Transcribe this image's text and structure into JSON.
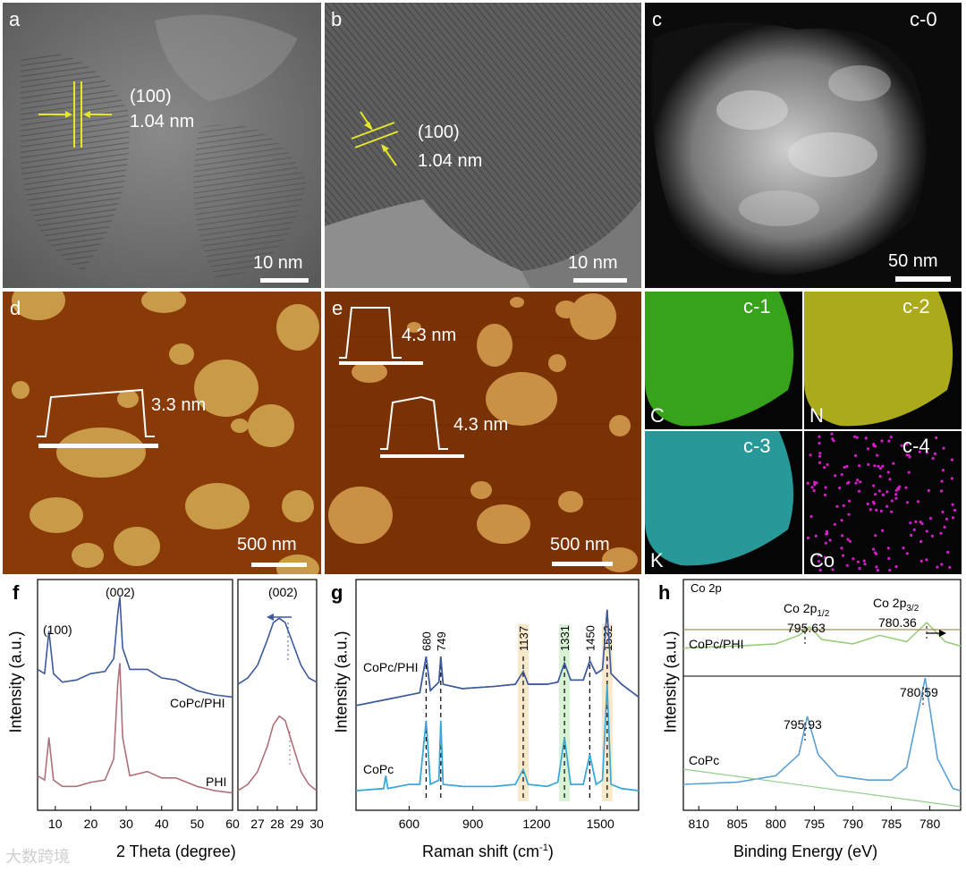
{
  "panels": {
    "a": {
      "letter": "a",
      "plane": "(100)",
      "spacing": "1.04 nm",
      "scale": "10 nm"
    },
    "b": {
      "letter": "b",
      "plane": "(100)",
      "spacing": "1.04 nm",
      "scale": "10 nm"
    },
    "c0": {
      "letter": "c",
      "tag": "c-0",
      "scale": "50 nm"
    },
    "d": {
      "letter": "d",
      "height": "3.3 nm",
      "scale": "500 nm"
    },
    "e": {
      "letter": "e",
      "height1": "4.3 nm",
      "height2": "4.3 nm",
      "scale": "500 nm"
    },
    "c1": {
      "tag": "c-1",
      "element": "C",
      "color": "#3fbf1f"
    },
    "c2": {
      "tag": "c-2",
      "element": "N",
      "color": "#c8c81e"
    },
    "c3": {
      "tag": "c-3",
      "element": "K",
      "color": "#2fb4b4"
    },
    "c4": {
      "tag": "c-4",
      "element": "Co",
      "color": "#d21ec8"
    }
  },
  "panel_f": {
    "letter": "f",
    "peak_100": "(100)",
    "peak_002": "(002)",
    "inset_peak": "(002)"
  },
  "panel_g": {
    "letter": "g"
  },
  "panel_h": {
    "letter": "h",
    "region": "Co 2p",
    "top_peak_left": "795.63",
    "top_peak_right": "780.36",
    "bottom_peak_left": "795.93",
    "bottom_peak_right": "780.59"
  },
  "chart_data": [
    {
      "type": "line",
      "xlabel": "2 Theta (degree)",
      "ylabel": "Intensity (a.u.)",
      "xlim": [
        5,
        60
      ],
      "xticks": [
        "10",
        "20",
        "30",
        "40",
        "50",
        "60"
      ],
      "series": [
        {
          "name": "CoPc/PHI",
          "color": "#3d5a9e",
          "x": [
            5,
            7,
            8.2,
            9.5,
            12,
            16,
            20,
            24,
            26.5,
            27.6,
            28.2,
            29,
            31,
            36,
            40,
            44,
            50,
            55,
            60
          ],
          "y": [
            0.62,
            0.6,
            0.8,
            0.6,
            0.56,
            0.57,
            0.6,
            0.61,
            0.67,
            0.88,
            0.96,
            0.72,
            0.62,
            0.62,
            0.58,
            0.57,
            0.52,
            0.5,
            0.49
          ]
        },
        {
          "name": "PHI",
          "color": "#b0707a",
          "x": [
            5,
            7,
            8.2,
            9.5,
            12,
            16,
            20,
            24,
            26.5,
            27.6,
            28.2,
            29,
            31,
            36,
            40,
            44,
            50,
            55,
            60
          ],
          "y": [
            0.12,
            0.1,
            0.3,
            0.1,
            0.07,
            0.07,
            0.09,
            0.1,
            0.2,
            0.55,
            0.65,
            0.3,
            0.12,
            0.14,
            0.11,
            0.11,
            0.07,
            0.05,
            0.04
          ]
        }
      ],
      "annotations": [
        "(100)",
        "(002)"
      ]
    },
    {
      "type": "line",
      "xlim": [
        26,
        30
      ],
      "xticks": [
        "27",
        "28",
        "29",
        "30"
      ],
      "series": [
        {
          "name": "CoPc/PHI",
          "color": "#3d5a9e",
          "x": [
            26,
            26.5,
            27,
            27.5,
            27.8,
            28.1,
            28.4,
            28.8,
            29.2,
            29.6,
            30
          ],
          "y": [
            0.55,
            0.58,
            0.64,
            0.76,
            0.84,
            0.86,
            0.84,
            0.74,
            0.64,
            0.58,
            0.56
          ]
        },
        {
          "name": "PHI",
          "color": "#b0707a",
          "x": [
            26,
            26.5,
            27,
            27.5,
            27.8,
            28.1,
            28.4,
            28.8,
            29.2,
            29.6,
            30
          ],
          "y": [
            0.05,
            0.08,
            0.14,
            0.26,
            0.36,
            0.4,
            0.38,
            0.26,
            0.14,
            0.08,
            0.05
          ]
        }
      ],
      "annotations": [
        "(002)"
      ]
    },
    {
      "type": "line",
      "xlabel": "Raman shift (cm-1)",
      "ylabel": "Intensity (a.u.)",
      "xlim": [
        350,
        1680
      ],
      "xticks": [
        "600",
        "900",
        "1200",
        "1500"
      ],
      "series": [
        {
          "name": "CoPc/PHI",
          "color": "#3d5a9e",
          "x": [
            350,
            500,
            600,
            650,
            680,
            700,
            740,
            749,
            760,
            850,
            1000,
            1100,
            1137,
            1160,
            1250,
            1300,
            1331,
            1360,
            1420,
            1450,
            1480,
            1510,
            1532,
            1550,
            1600,
            1680
          ],
          "y": [
            0.45,
            0.48,
            0.5,
            0.51,
            0.68,
            0.52,
            0.56,
            0.68,
            0.55,
            0.53,
            0.54,
            0.55,
            0.61,
            0.55,
            0.55,
            0.56,
            0.65,
            0.57,
            0.57,
            0.66,
            0.6,
            0.62,
            0.9,
            0.6,
            0.55,
            0.49
          ]
        },
        {
          "name": "CoPc",
          "color": "#39a8d8",
          "x": [
            350,
            480,
            490,
            500,
            600,
            650,
            680,
            700,
            740,
            749,
            760,
            850,
            1000,
            1100,
            1137,
            1160,
            1250,
            1300,
            1331,
            1360,
            1420,
            1450,
            1480,
            1510,
            1532,
            1550,
            1600,
            1680
          ],
          "y": [
            0.05,
            0.06,
            0.12,
            0.06,
            0.08,
            0.08,
            0.38,
            0.08,
            0.1,
            0.38,
            0.08,
            0.07,
            0.07,
            0.08,
            0.15,
            0.08,
            0.07,
            0.09,
            0.3,
            0.08,
            0.08,
            0.22,
            0.08,
            0.1,
            0.55,
            0.08,
            0.06,
            0.05
          ]
        }
      ],
      "annotations": [
        "680",
        "749",
        "1137",
        "1331",
        "1450",
        "1532"
      ]
    },
    {
      "type": "line",
      "xlabel": "Binding Energy (eV)",
      "ylabel": "Intensity (a.u.)",
      "xlim": [
        812,
        776
      ],
      "xticks": [
        "810",
        "805",
        "800",
        "795",
        "790",
        "785",
        "780"
      ],
      "series": [
        {
          "name": "CoPc/PHI",
          "color": "#9acd7a",
          "x": [
            812,
            805,
            800,
            797,
            795.6,
            794,
            790,
            786.5,
            783,
            780.4,
            778,
            776
          ],
          "y": [
            0.72,
            0.73,
            0.74,
            0.78,
            0.82,
            0.76,
            0.74,
            0.78,
            0.75,
            0.84,
            0.75,
            0.73
          ]
        },
        {
          "name": "CoPc",
          "color": "#5a9fd6",
          "x": [
            812,
            805,
            800,
            797,
            795.9,
            794.5,
            792,
            788,
            785,
            783,
            780.6,
            779,
            777,
            776
          ],
          "y": [
            0.08,
            0.09,
            0.12,
            0.22,
            0.4,
            0.22,
            0.12,
            0.1,
            0.1,
            0.16,
            0.58,
            0.2,
            0.06,
            0.05
          ]
        }
      ],
      "annotations": [
        "Co 2p1/2",
        "795.63",
        "Co 2p3/2",
        "780.36",
        "795.93",
        "780.59"
      ]
    }
  ],
  "labels": {
    "ylabel": "Intensity (a.u.)",
    "f_xlabel": "2 Theta (degree)",
    "g_xlabel_main": "Raman shift (cm",
    "g_xlabel_sup": "-1",
    "g_xlabel_end": ")",
    "h_xlabel": "Binding Energy (eV)",
    "cophi": "CoPc/PHI",
    "phi": "PHI",
    "copc": "CoPc",
    "co2p12_main": "Co 2p",
    "co2p12_sub": "1/2",
    "co2p32_main": "Co 2p",
    "co2p32_sub": "3/2"
  },
  "watermark": "大数跨境"
}
